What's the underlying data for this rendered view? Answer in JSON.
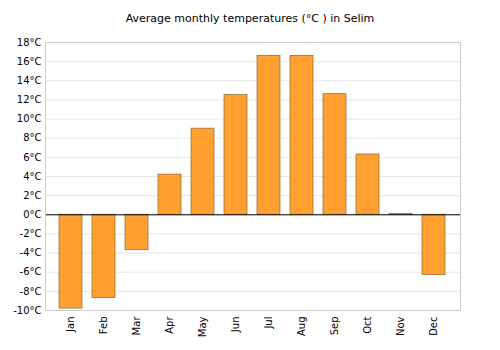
{
  "chart_data": {
    "type": "bar",
    "title": "Average monthly temperatures (°C ) in Selim",
    "categories": [
      "Jan",
      "Feb",
      "Mar",
      "Apr",
      "May",
      "Jun",
      "Jul",
      "Aug",
      "Sep",
      "Oct",
      "Nov",
      "Dec"
    ],
    "values": [
      -9.8,
      -8.7,
      -3.7,
      4.2,
      9.0,
      12.5,
      16.6,
      16.6,
      12.6,
      6.3,
      0.1,
      -6.3
    ],
    "color": "#ffa030",
    "ylim": [
      -10,
      18
    ],
    "yticks": [
      {
        "value": -10,
        "label": "-10°C"
      },
      {
        "value": -8,
        "label": "-8°C"
      },
      {
        "value": -6,
        "label": "-6°C"
      },
      {
        "value": -4,
        "label": "-4°C"
      },
      {
        "value": -2,
        "label": "-2°C"
      },
      {
        "value": 0,
        "label": "0°C"
      },
      {
        "value": 2,
        "label": "2°C"
      },
      {
        "value": 4,
        "label": "4°C"
      },
      {
        "value": 6,
        "label": "6°C"
      },
      {
        "value": 8,
        "label": "8°C"
      },
      {
        "value": 10,
        "label": "10°C"
      },
      {
        "value": 12,
        "label": "12°C"
      },
      {
        "value": 14,
        "label": "14°C"
      },
      {
        "value": 16,
        "label": "16°C"
      },
      {
        "value": 18,
        "label": "18°C"
      }
    ],
    "grid": true
  }
}
